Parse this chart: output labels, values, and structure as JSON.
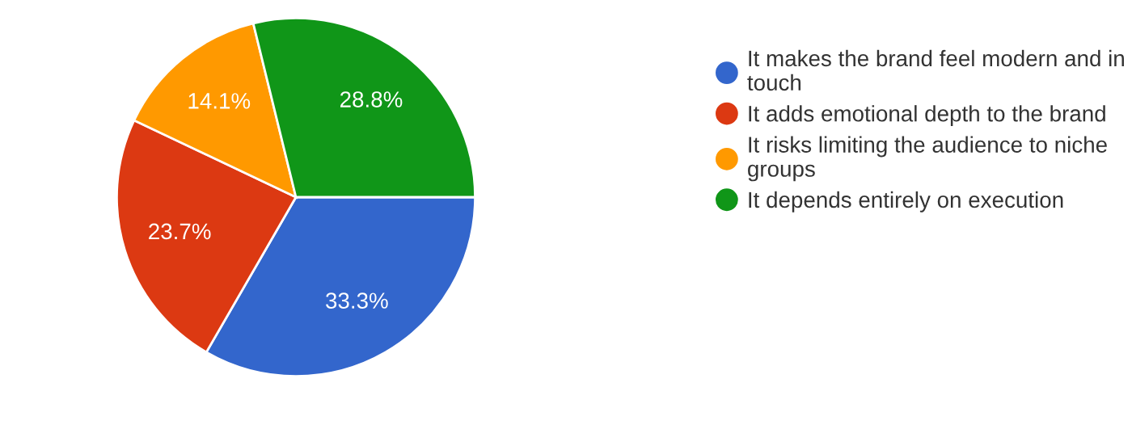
{
  "chart_data": {
    "type": "pie",
    "categories": [
      "It makes the brand feel modern and in touch",
      "It adds emotional depth to the brand",
      "It risks limiting the audience to niche groups",
      "It depends entirely on execution"
    ],
    "values": [
      33.3,
      23.7,
      14.1,
      28.8
    ],
    "colors": [
      "#3366cc",
      "#dc3912",
      "#ff9900",
      "#109618"
    ],
    "value_labels": [
      "33.3%",
      "23.7%",
      "14.1%",
      "28.8%"
    ],
    "legend": "right"
  }
}
